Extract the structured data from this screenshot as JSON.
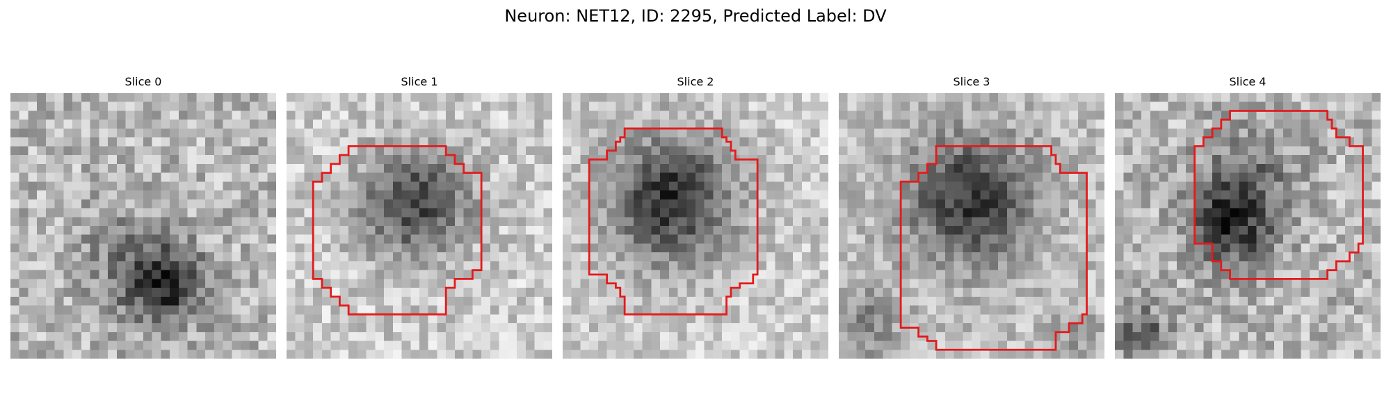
{
  "figure": {
    "title": "Neuron: NET12, ID: 2295, Predicted Label: DV"
  },
  "colors": {
    "contour": "#e41a1c",
    "background": "#ffffff"
  },
  "panels": [
    {
      "title": "Slice 0",
      "image": "grayscale-microscopy-slice",
      "contour": "none"
    },
    {
      "title": "Slice 1",
      "image": "grayscale-microscopy-slice",
      "contour": "red-octagonal-roi"
    },
    {
      "title": "Slice 2",
      "image": "grayscale-microscopy-slice",
      "contour": "red-octagonal-roi"
    },
    {
      "title": "Slice 3",
      "image": "grayscale-microscopy-slice",
      "contour": "red-octagonal-roi"
    },
    {
      "title": "Slice 4",
      "image": "grayscale-microscopy-slice",
      "contour": "red-octagonal-roi"
    }
  ]
}
